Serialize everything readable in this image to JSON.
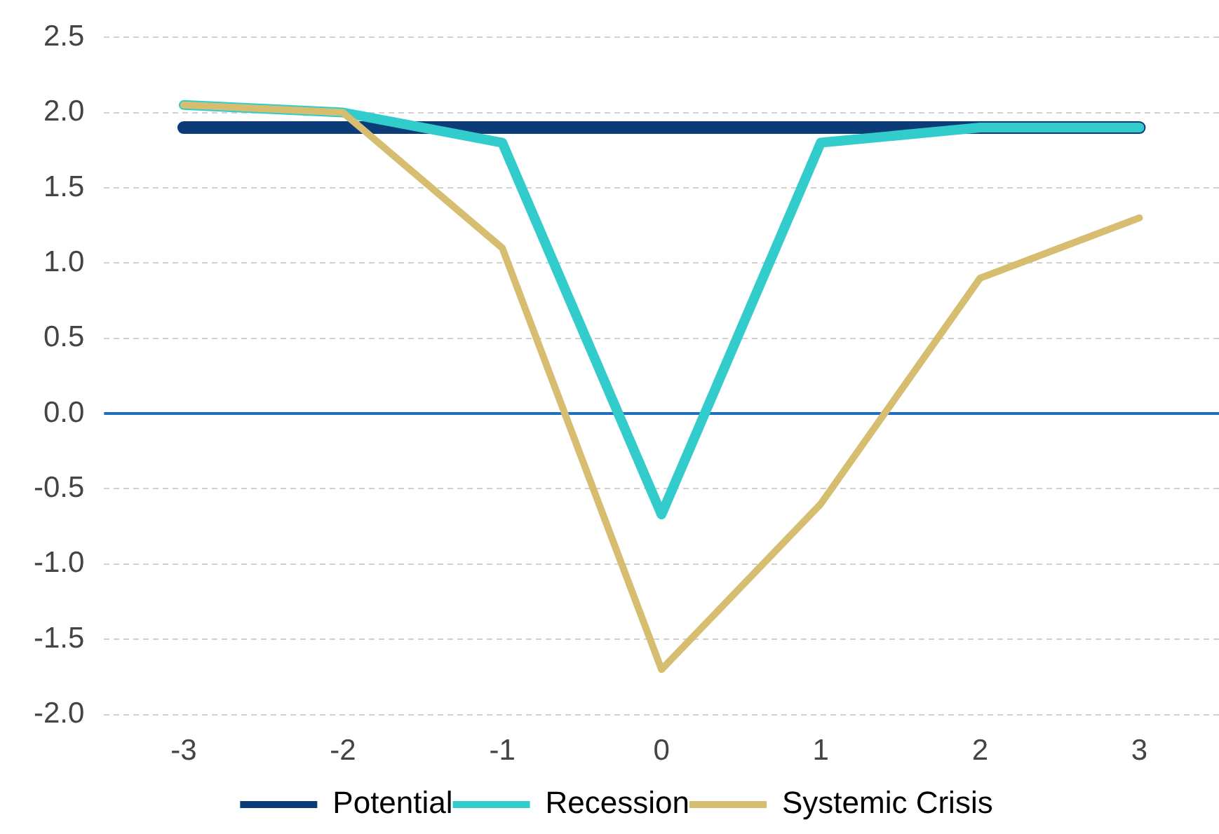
{
  "chart_data": {
    "type": "line",
    "categories": [
      "-3",
      "-2",
      "-1",
      "0",
      "1",
      "2",
      "3"
    ],
    "series": [
      {
        "name": "Potential",
        "color": "#0b3c78",
        "values": [
          1.9,
          1.9,
          1.9,
          1.9,
          1.9,
          1.9,
          1.9
        ]
      },
      {
        "name": "Recession",
        "color": "#33cccc",
        "values": [
          2.05,
          2.0,
          1.8,
          -0.67,
          1.8,
          1.9,
          1.9
        ]
      },
      {
        "name": "Systemic Crisis",
        "color": "#d6bd6f",
        "values": [
          2.05,
          2.0,
          1.1,
          -1.7,
          -0.6,
          0.9,
          1.3
        ]
      }
    ],
    "ylim": [
      -2.0,
      2.5
    ],
    "yticks": [
      {
        "value": -2,
        "label": "-2.0"
      },
      {
        "value": -1.5,
        "label": "-1.5"
      },
      {
        "value": -1,
        "label": "-1.0"
      },
      {
        "value": -0.5,
        "label": "-0.5"
      },
      {
        "value": 0,
        "label": "0.0"
      },
      {
        "value": 0.5,
        "label": "0.5"
      },
      {
        "value": 1,
        "label": "1.0"
      },
      {
        "value": 1.5,
        "label": "1.5"
      },
      {
        "value": 2,
        "label": "2.0"
      },
      {
        "value": 2.5,
        "label": "2.5"
      }
    ],
    "ref_lines": [
      {
        "axis": "y",
        "value": 0,
        "color": "#1f6fc0"
      }
    ],
    "grid": "y",
    "legend": "bottom",
    "marker": "none",
    "line_style": "solid"
  }
}
